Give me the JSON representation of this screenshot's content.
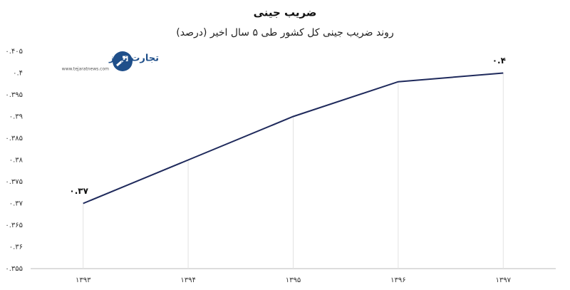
{
  "chart_data": {
    "type": "line",
    "title": "ضریب جینی",
    "subtitle": "روند ضریب جینی کل کشور طی ۵ سال اخیر (درصد)",
    "categories": [
      "۱۳۹۳",
      "۱۳۹۴",
      "۱۳۹۵",
      "۱۳۹۶",
      "۱۳۹۷"
    ],
    "values": [
      0.37,
      0.38,
      0.39,
      0.398,
      0.4
    ],
    "value_labels": [
      "۰.۳۷",
      null,
      null,
      null,
      "۰.۴"
    ],
    "color": "#1f2a5c",
    "ylim": [
      0.355,
      0.405
    ],
    "yticks": [
      {
        "value": 0.355,
        "label": "۰.۳۵۵"
      },
      {
        "value": 0.36,
        "label": "۰.۳۶"
      },
      {
        "value": 0.365,
        "label": "۰.۳۶۵"
      },
      {
        "value": 0.37,
        "label": "۰.۳۷"
      },
      {
        "value": 0.375,
        "label": "۰.۳۷۵"
      },
      {
        "value": 0.38,
        "label": "۰.۳۸"
      },
      {
        "value": 0.385,
        "label": "۰.۳۸۵"
      },
      {
        "value": 0.39,
        "label": "۰.۳۹"
      },
      {
        "value": 0.395,
        "label": "۰.۳۹۵"
      },
      {
        "value": 0.4,
        "label": "۰.۴"
      },
      {
        "value": 0.405,
        "label": "۰.۴۰۵"
      }
    ],
    "drop_lines": true
  },
  "watermark": {
    "name": "تجارت نیوز",
    "url": "www.tejaratnews.com"
  }
}
